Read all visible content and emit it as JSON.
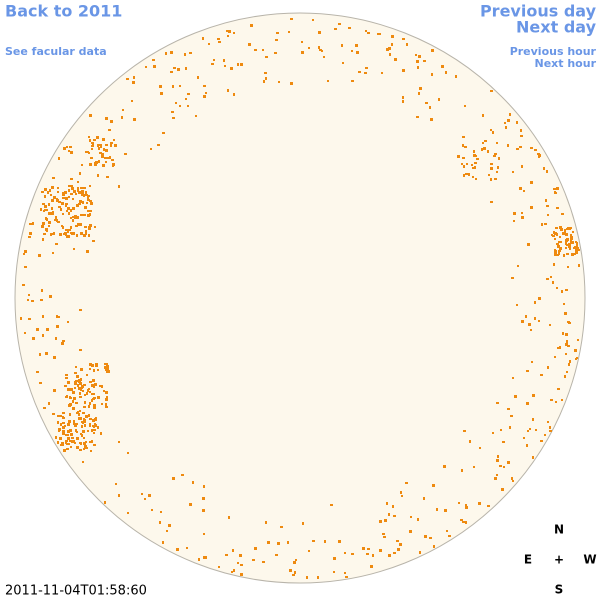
{
  "nav": {
    "back_year": "Back to 2011",
    "facular": "See facular data",
    "previous_day": "Previous day",
    "next_day": "Next day",
    "previous_hour": "Previous hour",
    "next_hour": "Next hour"
  },
  "timestamp": "2011-11-04T01:58:60",
  "compass": {
    "north": "N",
    "east": "E",
    "center": "+",
    "west": "W",
    "south": "S"
  }
}
